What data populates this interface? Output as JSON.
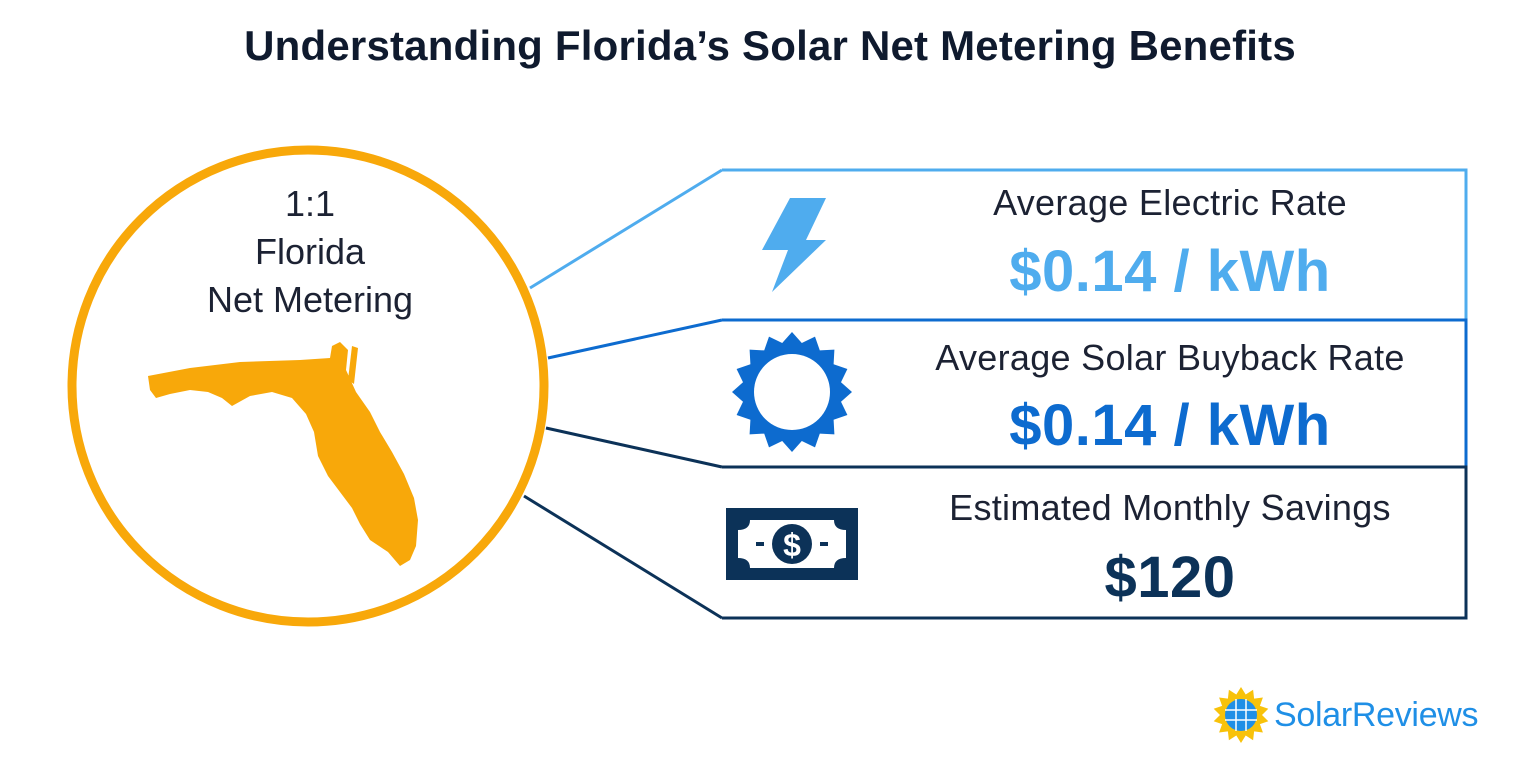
{
  "title": "Understanding Florida’s Solar Net Metering Benefits",
  "badge": {
    "ratio": "1:1",
    "state": "Florida",
    "program": "Net Metering"
  },
  "rows": [
    {
      "label": "Average Electric Rate",
      "value": "$0.14 / kWh",
      "color": "#4facee",
      "icon": "lightning-bolt-icon"
    },
    {
      "label": "Average Solar Buyback Rate",
      "value": "$0.14 / kWh",
      "color": "#0d6bcf",
      "icon": "sun-icon"
    },
    {
      "label": "Estimated Monthly Savings",
      "value": "$120",
      "color": "#0c3258",
      "icon": "dollar-bill-icon"
    }
  ],
  "colors": {
    "circle": "#f8a80a",
    "florida": "#f8a80a",
    "title": "#0f1a2e",
    "brand": "#1f8fe6"
  },
  "brand": {
    "name": "SolarReviews",
    "icon": "solar-panel-sun-logo"
  }
}
